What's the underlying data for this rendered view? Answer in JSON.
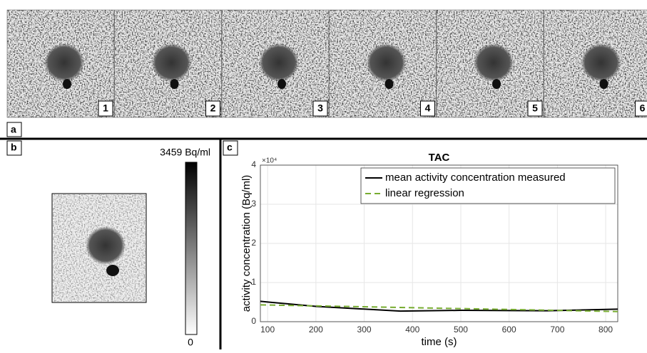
{
  "panel_labels": {
    "a": "a",
    "b": "b",
    "c": "c"
  },
  "frames": [
    "1",
    "2",
    "3",
    "4",
    "5",
    "6"
  ],
  "colorbar": {
    "max_label": "3459 Bq/ml",
    "min_label": "0"
  },
  "chart_data": {
    "type": "line",
    "title": "TAC",
    "x_label": "time (s)",
    "y_label": "activity concentration (Bq/ml)",
    "y_exponent": "×10⁴",
    "xlim": [
      85,
      825
    ],
    "ylim": [
      0,
      40000
    ],
    "xticks": [
      100,
      200,
      300,
      400,
      500,
      600,
      700,
      800
    ],
    "yticks": [
      {
        "value": 0,
        "label": "0"
      },
      {
        "value": 10000,
        "label": "1"
      },
      {
        "value": 20000,
        "label": "2"
      },
      {
        "value": 30000,
        "label": "3"
      },
      {
        "value": 40000,
        "label": "4"
      }
    ],
    "grid": true,
    "legend": "upper right",
    "series": [
      {
        "name": "mean activity concentration measured",
        "color": "#000000",
        "style": "solid",
        "x": [
          85,
          200,
          375,
          500,
          680,
          825
        ],
        "values": [
          5200,
          3900,
          2700,
          2900,
          2800,
          3200
        ]
      },
      {
        "name": "linear regression",
        "color": "#77ac30",
        "style": "dashed",
        "x": [
          85,
          825
        ],
        "values": [
          4300,
          2600
        ]
      }
    ]
  }
}
